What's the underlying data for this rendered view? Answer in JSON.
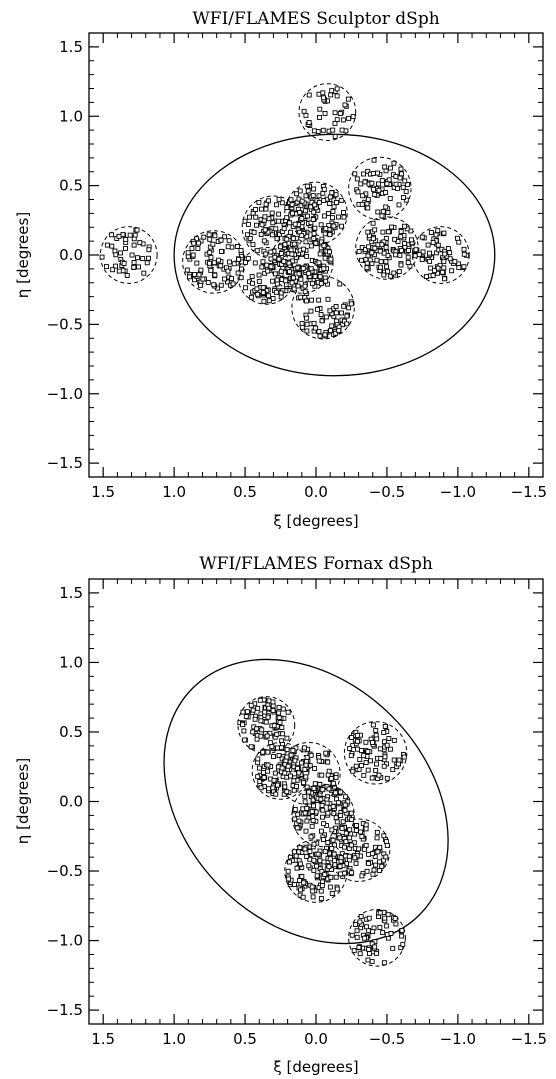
{
  "chart_data": [
    {
      "type": "scatter",
      "title": "WFI/FLAMES Sculptor dSph",
      "xlabel": "ξ [degrees]",
      "ylabel": "η [degrees]",
      "xlim": [
        1.6,
        -1.6
      ],
      "ylim": [
        -1.6,
        1.6
      ],
      "x_ticks": [
        1.5,
        1.0,
        0.5,
        0.0,
        -0.5,
        -1.0,
        -1.5
      ],
      "x_tick_labels": [
        "1.5",
        "1.0",
        "0.5",
        "0.0",
        "−0.5",
        "−1.0",
        "−1.5"
      ],
      "y_ticks": [
        1.5,
        1.0,
        0.5,
        0.0,
        -0.5,
        -1.0,
        -1.5
      ],
      "y_tick_labels": [
        "1.5",
        "1.0",
        "0.5",
        "0.0",
        "−0.5",
        "−1.0",
        "−1.5"
      ],
      "marker": "open-square",
      "ellipse": {
        "center": [
          -0.13,
          0.0
        ],
        "semi_major": 1.13,
        "semi_minor": 0.87,
        "angle_deg": 0
      },
      "fields": [
        {
          "center": [
            -0.08,
            1.03
          ],
          "radius": 0.2,
          "count": 40
        },
        {
          "center": [
            1.32,
            0.0
          ],
          "radius": 0.2,
          "count": 45
        },
        {
          "center": [
            0.72,
            -0.05
          ],
          "radius": 0.22,
          "count": 90
        },
        {
          "center": [
            0.3,
            0.2
          ],
          "radius": 0.22,
          "count": 90
        },
        {
          "center": [
            0.0,
            0.3
          ],
          "radius": 0.22,
          "count": 110
        },
        {
          "center": [
            -0.45,
            0.48
          ],
          "radius": 0.22,
          "count": 80
        },
        {
          "center": [
            -0.5,
            0.05
          ],
          "radius": 0.22,
          "count": 110
        },
        {
          "center": [
            -0.88,
            0.0
          ],
          "radius": 0.2,
          "count": 70
        },
        {
          "center": [
            0.1,
            -0.05
          ],
          "radius": 0.22,
          "count": 160
        },
        {
          "center": [
            -0.05,
            -0.38
          ],
          "radius": 0.22,
          "count": 70
        },
        {
          "center": [
            0.35,
            -0.15
          ],
          "radius": 0.2,
          "count": 70
        }
      ]
    },
    {
      "type": "scatter",
      "title": "WFI/FLAMES Fornax dSph",
      "xlabel": "ξ [degrees]",
      "ylabel": "η [degrees]",
      "xlim": [
        1.6,
        -1.6
      ],
      "ylim": [
        -1.6,
        1.6
      ],
      "x_ticks": [
        1.5,
        1.0,
        0.5,
        0.0,
        -0.5,
        -1.0,
        -1.5
      ],
      "x_tick_labels": [
        "1.5",
        "1.0",
        "0.5",
        "0.0",
        "−0.5",
        "−1.0",
        "−1.5"
      ],
      "y_ticks": [
        1.5,
        1.0,
        0.5,
        0.0,
        -0.5,
        -1.0,
        -1.5
      ],
      "y_tick_labels": [
        "1.5",
        "1.0",
        "0.5",
        "0.0",
        "−0.5",
        "−1.0",
        "−1.5"
      ],
      "marker": "open-square",
      "ellipse": {
        "center": [
          0.07,
          0.0
        ],
        "semi_major": 1.13,
        "semi_minor": 0.87,
        "angle_deg": 45
      },
      "fields": [
        {
          "center": [
            0.35,
            0.55
          ],
          "radius": 0.2,
          "count": 90
        },
        {
          "center": [
            -0.42,
            0.35
          ],
          "radius": 0.22,
          "count": 80
        },
        {
          "center": [
            0.25,
            0.22
          ],
          "radius": 0.2,
          "count": 90
        },
        {
          "center": [
            0.05,
            0.2
          ],
          "radius": 0.22,
          "count": 90
        },
        {
          "center": [
            -0.05,
            -0.1
          ],
          "radius": 0.22,
          "count": 130
        },
        {
          "center": [
            -0.3,
            -0.35
          ],
          "radius": 0.22,
          "count": 100
        },
        {
          "center": [
            0.0,
            -0.5
          ],
          "radius": 0.22,
          "count": 120
        },
        {
          "center": [
            -0.43,
            -0.98
          ],
          "radius": 0.2,
          "count": 65
        }
      ]
    }
  ]
}
